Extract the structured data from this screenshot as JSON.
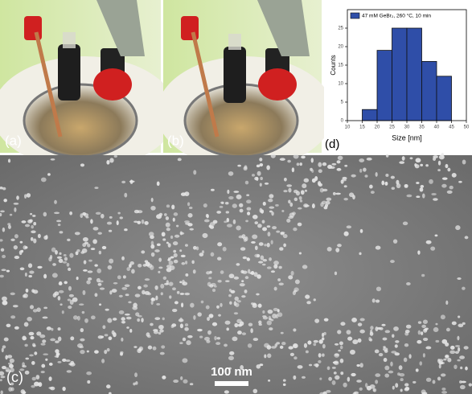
{
  "panels": {
    "a": "(a)",
    "b": "(b)",
    "c": "(c)",
    "d": "(d)"
  },
  "scale_bar": "100 nm",
  "chart_data": {
    "type": "histogram",
    "series_name": "47 mM GeBr₂, 260 °C, 10 min",
    "color": "#2f4ea8",
    "bins": [
      15,
      20,
      25,
      30,
      35,
      40,
      45
    ],
    "counts": [
      3,
      19,
      25,
      25,
      16,
      12
    ],
    "xlabel": "Size [nm]",
    "ylabel": "Counts",
    "xlim": [
      10,
      50
    ],
    "xticks": [
      10,
      15,
      20,
      25,
      30,
      35,
      40,
      45,
      50
    ],
    "ylim": [
      0,
      30
    ],
    "yticks": [
      0,
      5,
      10,
      15,
      20,
      25
    ],
    "legend": "upper left"
  }
}
